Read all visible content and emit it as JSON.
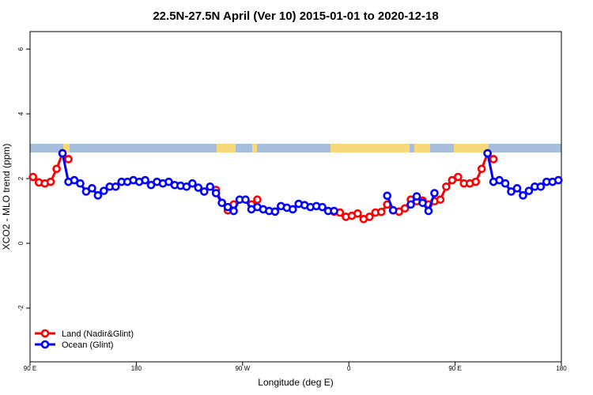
{
  "chart_data": {
    "type": "line",
    "title": "22.5N-27.5N April (Ver 10)   2015-01-01 to 2020-12-18",
    "xlabel": "Longitude (deg E)",
    "ylabel": "XCO2 - MLO trend (ppm)",
    "xlim": [
      90,
      540
    ],
    "ylim": [
      -3.66,
      6.54
    ],
    "xticks": [
      {
        "value": 90,
        "label": "90 E"
      },
      {
        "value": 180,
        "label": "180"
      },
      {
        "value": 270,
        "label": "90 W"
      },
      {
        "value": 360,
        "label": "0"
      },
      {
        "value": 450,
        "label": "90 E"
      },
      {
        "value": 540,
        "label": "180"
      }
    ],
    "yticks": [
      -2,
      0,
      2,
      4,
      6
    ],
    "legend": "bottom-left",
    "x": [
      92.5,
      97.5,
      102.5,
      107.5,
      112.5,
      117.5,
      122.5,
      127.5,
      132.5,
      137.5,
      142.5,
      147.5,
      152.5,
      157.5,
      162.5,
      167.5,
      172.5,
      177.5,
      182.5,
      187.5,
      192.5,
      197.5,
      202.5,
      207.5,
      212.5,
      217.5,
      222.5,
      227.5,
      232.5,
      237.5,
      242.5,
      247.5,
      252.5,
      257.5,
      262.5,
      267.5,
      272.5,
      277.5,
      282.5,
      287.5,
      292.5,
      297.5,
      302.5,
      307.5,
      312.5,
      317.5,
      322.5,
      327.5,
      332.5,
      337.5,
      342.5,
      347.5,
      352.5,
      357.5,
      362.5,
      367.5,
      372.5,
      377.5,
      382.5,
      387.5,
      392.5,
      397.5,
      402.5,
      407.5,
      412.5,
      417.5,
      422.5,
      427.5,
      432.5,
      437.5,
      442.5,
      447.5,
      452.5,
      457.5,
      462.5,
      467.5,
      472.5,
      477.5,
      482.5,
      487.5,
      492.5,
      497.5,
      502.5,
      507.5,
      512.5,
      517.5,
      522.5,
      527.5,
      532.5,
      537.5
    ],
    "series": [
      {
        "name": "Land (Nadir&Glint)",
        "color": "#ff0000",
        "values": [
          2.05,
          1.88,
          1.85,
          1.9,
          2.3,
          2.78,
          2.6,
          null,
          null,
          null,
          null,
          null,
          null,
          null,
          null,
          null,
          null,
          null,
          null,
          null,
          null,
          null,
          null,
          null,
          null,
          null,
          null,
          null,
          null,
          null,
          null,
          1.65,
          1.25,
          1.02,
          1.2,
          null,
          null,
          1.2,
          1.35,
          null,
          null,
          null,
          null,
          null,
          null,
          null,
          null,
          null,
          null,
          null,
          null,
          0.98,
          0.95,
          0.82,
          0.85,
          0.92,
          0.75,
          0.82,
          0.95,
          0.97,
          1.2,
          1.02,
          0.98,
          1.08,
          1.35,
          1.3,
          1.32,
          1.2,
          1.3,
          1.35,
          1.75,
          1.95,
          2.05,
          1.85,
          1.85,
          1.9,
          2.3,
          2.78,
          2.6,
          null,
          null,
          null,
          null,
          null,
          null,
          null,
          null,
          null,
          null,
          null
        ]
      },
      {
        "name": "Ocean (Glint)",
        "color": "#0000ff",
        "values": [
          null,
          null,
          null,
          null,
          null,
          2.78,
          1.9,
          1.95,
          1.85,
          1.6,
          1.7,
          1.48,
          1.62,
          1.75,
          1.75,
          1.9,
          1.9,
          1.95,
          1.9,
          1.95,
          1.8,
          1.9,
          1.85,
          1.9,
          1.8,
          1.78,
          1.75,
          1.85,
          1.72,
          1.6,
          1.75,
          1.55,
          1.25,
          1.12,
          1.0,
          1.35,
          1.35,
          1.05,
          1.12,
          1.05,
          1.0,
          0.98,
          1.15,
          1.1,
          1.05,
          1.22,
          1.18,
          1.12,
          1.15,
          1.12,
          1.0,
          1.0,
          null,
          null,
          null,
          null,
          null,
          null,
          null,
          null,
          1.47,
          1.02,
          null,
          null,
          1.2,
          1.45,
          1.25,
          1.0,
          1.55,
          null,
          null,
          null,
          null,
          null,
          null,
          null,
          null,
          2.78,
          1.9,
          1.95,
          1.85,
          1.6,
          1.7,
          1.48,
          1.62,
          1.75,
          1.75,
          1.9,
          1.9,
          1.95
        ]
      }
    ]
  }
}
